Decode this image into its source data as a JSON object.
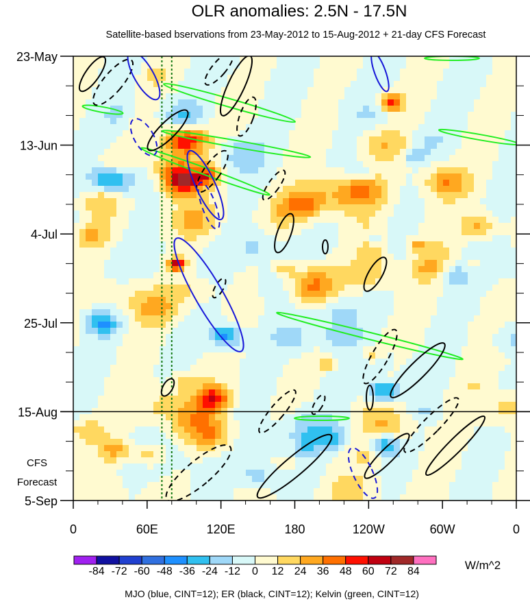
{
  "chart_data": {
    "type": "heatmap",
    "title": "OLR anomalies: 2.5N - 17.5N",
    "subtitle": "Satellite-based bservations from 23-May-2012 to 15-Aug-2012 + 21-day CFS Forecast",
    "x_tick_labels": [
      "0",
      "60E",
      "120E",
      "180",
      "120W",
      "60W",
      "0"
    ],
    "x_tick_lon": [
      0,
      60,
      120,
      180,
      240,
      300,
      360
    ],
    "y_tick_labels": [
      "23-May",
      "13-Jun",
      "4-Jul",
      "25-Jul",
      "15-Aug",
      "5-Sep"
    ],
    "y_tick_day": [
      0,
      21,
      42,
      63,
      84,
      105
    ],
    "forecast_label_lines": [
      "CFS",
      "Forecast"
    ],
    "forecast_start_day": 84,
    "colorbar": {
      "unit": "W/m^2",
      "levels": [
        "-84",
        "-72",
        "-60",
        "-48",
        "-36",
        "-24",
        "-12",
        "0",
        "12",
        "24",
        "36",
        "48",
        "60",
        "72",
        "84"
      ],
      "colors": [
        "#a020f0",
        "#1010a0",
        "#2040d0",
        "#3070e0",
        "#1e90ff",
        "#30c0f0",
        "#9fd8f8",
        "#d8f8f8",
        "#fffad0",
        "#ffd860",
        "#ffa820",
        "#ff7000",
        "#ff1000",
        "#c00010",
        "#a02828",
        "#ff70c0"
      ]
    },
    "footer": "MJO (blue, CINT=12); ER (black, CINT=12); Kelvin (green, CINT=12)",
    "contour_colors": {
      "mjo": "#1818d8",
      "er": "#000000",
      "kelvin": "#22ee22",
      "reference_lines": "#117711"
    },
    "reference_lons": [
      72,
      80
    ]
  }
}
